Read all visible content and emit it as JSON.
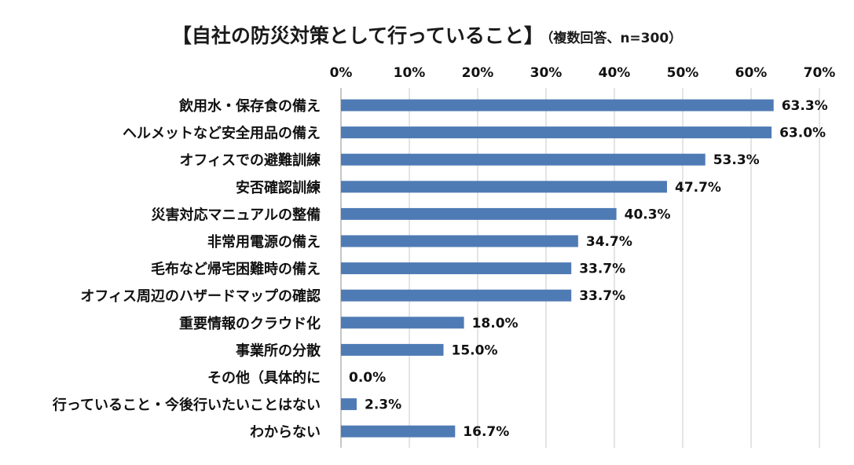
{
  "chart_data": {
    "type": "bar",
    "orientation": "horizontal",
    "title": "【自社の防災対策として行っていること】",
    "subtitle": "（複数回答、n=300）",
    "categories": [
      "飲用水・保存食の備え",
      "ヘルメットなど安全用品の備え",
      "オフィスでの避難訓練",
      "安否確認訓練",
      "災害対応マニュアルの整備",
      "非常用電源の備え",
      "毛布など帰宅困難時の備え",
      "オフィス周辺のハザードマップの確認",
      "重要情報のクラウド化",
      "事業所の分散",
      "その他（具体的に",
      "行っていること・今後行いたいことはない",
      "わからない"
    ],
    "values": [
      63.3,
      63.0,
      53.3,
      47.7,
      40.3,
      34.7,
      33.7,
      33.7,
      18.0,
      15.0,
      0.0,
      2.3,
      16.7
    ],
    "value_labels": [
      "63.3%",
      "63.0%",
      "53.3%",
      "47.7%",
      "40.3%",
      "34.7%",
      "33.7%",
      "33.7%",
      "18.0%",
      "15.0%",
      "0.0%",
      "2.3%",
      "16.7%"
    ],
    "xlim": [
      0,
      70
    ],
    "x_ticks": [
      "0%",
      "10%",
      "20%",
      "30%",
      "40%",
      "50%",
      "60%",
      "70%"
    ],
    "x_axis_position": "top",
    "grid": true,
    "legend": false,
    "bar_color": "#4f7bb5"
  }
}
